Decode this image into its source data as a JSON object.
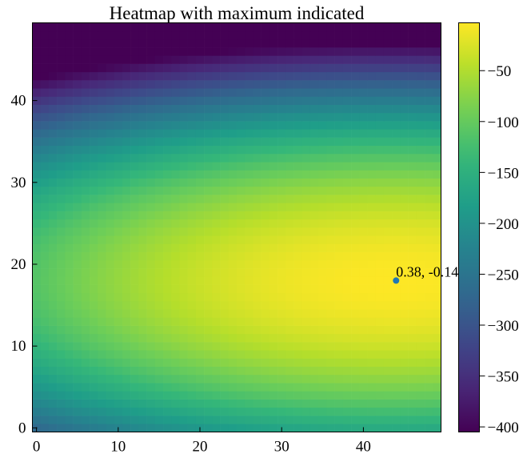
{
  "chart_data": {
    "type": "heatmap",
    "title": "Heatmap with maximum indicated",
    "xlabel": "",
    "ylabel": "",
    "grid_size": [
      50,
      50
    ],
    "x_ticks": [
      0,
      10,
      20,
      30,
      40
    ],
    "y_ticks": [
      0,
      10,
      20,
      30,
      40
    ],
    "xlim": [
      -0.5,
      49.5
    ],
    "ylim": [
      -0.5,
      49.5
    ],
    "colormap": "viridis",
    "color_range": [
      -405,
      -3
    ],
    "colorbar_ticks": [
      -50,
      -100,
      -150,
      -200,
      -250,
      -300,
      -350,
      -400
    ],
    "colorbar_tick_labels": [
      "−50",
      "−100",
      "−150",
      "−200",
      "−250",
      "−300",
      "−350",
      "−400"
    ],
    "maximum": {
      "x": 44,
      "y": 18,
      "label": "0.38, -0.14"
    },
    "marker_color": "#1f77b4",
    "grid": false
  }
}
